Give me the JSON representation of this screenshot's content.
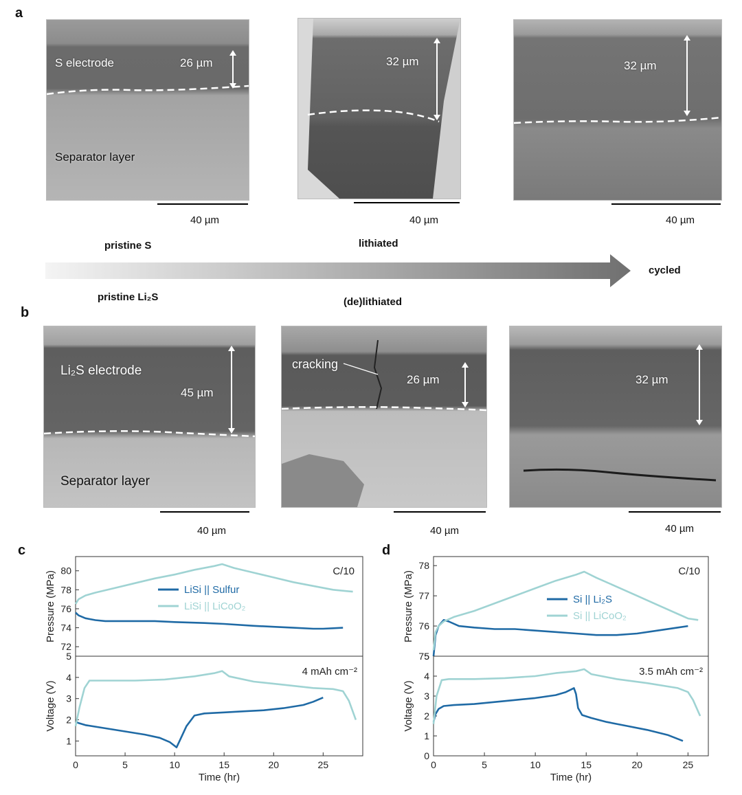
{
  "panels": {
    "a": "a",
    "b": "b",
    "c": "c",
    "d": "d"
  },
  "sem_row_a": [
    {
      "thickness": "26 µm",
      "top_label": "S electrode",
      "bottom_label": "Separator layer",
      "scalebar": "40 µm"
    },
    {
      "thickness": "32 µm",
      "top_label": "",
      "bottom_label": "",
      "scalebar": "40 µm"
    },
    {
      "thickness": "32 µm",
      "top_label": "",
      "bottom_label": "",
      "scalebar": "40 µm"
    }
  ],
  "sem_row_b": [
    {
      "thickness": "45 µm",
      "top_label": "Li₂S electrode",
      "bottom_label": "Separator layer",
      "scalebar": "40 µm"
    },
    {
      "thickness": "26 µm",
      "top_label": "cracking",
      "bottom_label": "",
      "scalebar": "40 µm"
    },
    {
      "thickness": "32 µm",
      "top_label": "",
      "bottom_label": "",
      "scalebar": "40 µm"
    }
  ],
  "stages": {
    "pristine_s": "pristine S",
    "lithiated": "lithiated",
    "cycled": "cycled",
    "pristine_li2s": "pristine Li₂S",
    "delithiated": "(de)lithiated"
  },
  "chart_data": [
    {
      "type": "line",
      "panel": "c",
      "rate": "C/10",
      "capacity": "4 mAh cm⁻²",
      "xlabel": "Time (hr)",
      "xlim": [
        0,
        29
      ],
      "xticks": [
        0,
        5,
        10,
        15,
        20,
        25
      ],
      "pressure": {
        "ylabel": "Pressure (MPa)",
        "ylim": [
          71,
          81.5
        ],
        "yticks": [
          72,
          74,
          76,
          78,
          80
        ],
        "series": [
          {
            "name": "LiSi || Sulfur",
            "color": "#1f6aa5",
            "x": [
              0,
              0.3,
              1,
              2,
              3,
              5,
              8,
              10,
              13,
              15,
              18,
              20,
              22,
              24,
              25,
              26,
              27
            ],
            "y": [
              75.6,
              75.3,
              75.0,
              74.8,
              74.7,
              74.7,
              74.7,
              74.6,
              74.5,
              74.4,
              74.2,
              74.1,
              74.0,
              73.9,
              73.9,
              73.95,
              74.0
            ]
          },
          {
            "name": "LiSi || LiCoO₂",
            "color": "#9fd3d3",
            "x": [
              0,
              0.3,
              1,
              2,
              4,
              6,
              8,
              10,
              12,
              14,
              14.8,
              16,
              18,
              20,
              22,
              24,
              26,
              28
            ],
            "y": [
              76.5,
              77.0,
              77.4,
              77.7,
              78.2,
              78.7,
              79.2,
              79.6,
              80.1,
              80.5,
              80.7,
              80.3,
              79.8,
              79.3,
              78.8,
              78.4,
              78.0,
              77.8
            ]
          }
        ]
      },
      "voltage": {
        "ylabel": "Voltage (V)",
        "ylim": [
          0.3,
          5
        ],
        "yticks": [
          1,
          2,
          3,
          4,
          5
        ],
        "series": [
          {
            "name": "LiSi || Sulfur",
            "color": "#1f6aa5",
            "x": [
              0,
              0.3,
              1,
              3,
              5,
              7,
              8.5,
              9.5,
              10.2,
              10.6,
              11.2,
              12,
              13,
              15,
              17,
              19,
              21,
              23,
              24,
              25
            ],
            "y": [
              1.9,
              1.85,
              1.75,
              1.6,
              1.45,
              1.3,
              1.15,
              0.95,
              0.7,
              1.1,
              1.7,
              2.2,
              2.3,
              2.35,
              2.4,
              2.45,
              2.55,
              2.7,
              2.85,
              3.05
            ]
          },
          {
            "name": "LiSi || LiCoO₂",
            "color": "#9fd3d3",
            "x": [
              0,
              0.4,
              0.9,
              1.4,
              3,
              6,
              9,
              12,
              14,
              14.8,
              15.5,
              18,
              21,
              24,
              26,
              27,
              27.6,
              28.3
            ],
            "y": [
              1.7,
              2.6,
              3.5,
              3.85,
              3.85,
              3.85,
              3.9,
              4.05,
              4.2,
              4.3,
              4.05,
              3.8,
              3.65,
              3.5,
              3.45,
              3.35,
              2.9,
              2.0
            ]
          }
        ]
      }
    },
    {
      "type": "line",
      "panel": "d",
      "rate": "C/10",
      "capacity": "3.5 mAh cm⁻²",
      "xlabel": "Time (hr)",
      "xlim": [
        0,
        27
      ],
      "xticks": [
        0,
        5,
        10,
        15,
        20,
        25
      ],
      "pressure": {
        "ylabel": "Pressure (MPa)",
        "ylim": [
          75,
          78.3
        ],
        "yticks": [
          75,
          76,
          77,
          78
        ],
        "series": [
          {
            "name": "Si || Li₂S",
            "color": "#1f6aa5",
            "x": [
              0,
              0.2,
              0.5,
              1,
              1.5,
              2.5,
              4,
              6,
              8,
              10,
              12,
              14,
              16,
              18,
              20,
              22,
              24,
              25
            ],
            "y": [
              75.0,
              75.7,
              76.0,
              76.2,
              76.15,
              76.0,
              75.95,
              75.9,
              75.9,
              75.85,
              75.8,
              75.75,
              75.7,
              75.7,
              75.75,
              75.85,
              75.95,
              76.0
            ]
          },
          {
            "name": "Si || LiCoO₂",
            "color": "#9fd3d3",
            "x": [
              0,
              0.2,
              0.5,
              1,
              2,
              4,
              6,
              8,
              10,
              12,
              14,
              14.8,
              16,
              18,
              20,
              22,
              24,
              25,
              26
            ],
            "y": [
              75.2,
              75.8,
              76.0,
              76.15,
              76.3,
              76.5,
              76.75,
              77.0,
              77.25,
              77.5,
              77.7,
              77.8,
              77.6,
              77.3,
              77.0,
              76.7,
              76.4,
              76.25,
              76.2
            ]
          }
        ]
      },
      "voltage": {
        "ylabel": "Voltage (V)",
        "ylim": [
          0,
          5
        ],
        "yticks": [
          0,
          1,
          2,
          3,
          4,
          5
        ],
        "series": [
          {
            "name": "Si || Li₂S",
            "color": "#1f6aa5",
            "x": [
              0,
              0.2,
              0.5,
              1,
              2,
              4,
              6,
              8,
              10,
              12,
              13,
              13.8,
              14.0,
              14.2,
              14.6,
              15.5,
              17,
              19,
              21,
              23,
              24.5
            ],
            "y": [
              1.7,
              2.1,
              2.35,
              2.5,
              2.55,
              2.6,
              2.7,
              2.8,
              2.9,
              3.05,
              3.2,
              3.4,
              3.1,
              2.4,
              2.05,
              1.9,
              1.7,
              1.5,
              1.3,
              1.05,
              0.75
            ]
          },
          {
            "name": "Si || LiCoO₂",
            "color": "#9fd3d3",
            "x": [
              0,
              0.3,
              0.8,
              1.5,
              4,
              7,
              10,
              12,
              14,
              14.8,
              15.5,
              18,
              21,
              24,
              25,
              25.5,
              26.2
            ],
            "y": [
              1.6,
              3.0,
              3.8,
              3.85,
              3.85,
              3.9,
              4.0,
              4.15,
              4.25,
              4.35,
              4.1,
              3.85,
              3.65,
              3.4,
              3.2,
              2.8,
              2.0
            ]
          }
        ]
      }
    }
  ]
}
